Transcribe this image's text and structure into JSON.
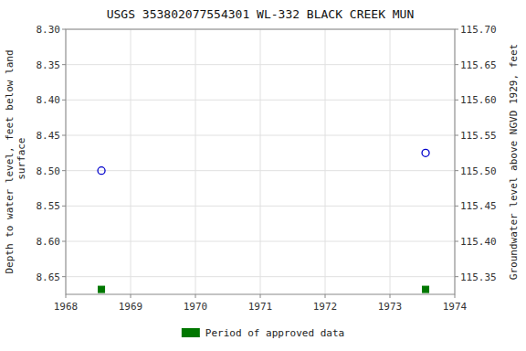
{
  "chart_data": {
    "type": "scatter",
    "title": "USGS 353802077554301 WL-332 BLACK CREEK MUN",
    "y_label": "Depth to water level, feet below land\n surface",
    "y2_label": "Groundwater level above NGVD 1929, feet",
    "xlim": [
      1968.0,
      1974.0
    ],
    "xticks": [
      1968,
      1969,
      1970,
      1971,
      1972,
      1973,
      1974
    ],
    "ylim": [
      8.675,
      8.3
    ],
    "yticks": [
      {
        "value": 8.3,
        "label": "8.30"
      },
      8.35,
      {
        "value": 8.4,
        "label": "8.40"
      },
      8.45,
      {
        "value": 8.5,
        "label": "8.50"
      },
      8.55,
      {
        "value": 8.6,
        "label": "8.60"
      },
      8.65
    ],
    "y2lim": [
      115.325,
      115.7
    ],
    "y2ticks": [
      {
        "value": 115.7,
        "label": "115.70"
      },
      115.65,
      {
        "value": 115.6,
        "label": "115.60"
      },
      115.55,
      {
        "value": 115.5,
        "label": "115.50"
      },
      115.45,
      {
        "value": 115.4,
        "label": "115.40"
      },
      115.35
    ],
    "series": [
      {
        "x": [
          1968.55,
          1973.55
        ],
        "values": [
          8.5,
          8.475
        ],
        "color": "#0000cc",
        "marker": "circle"
      },
      {
        "name": "Period of approved data",
        "x": [
          1968.55,
          1973.55
        ],
        "values": [
          8.668,
          8.668
        ],
        "color": "#007700",
        "marker": "square"
      }
    ],
    "grid": true,
    "legend": "bottom"
  }
}
